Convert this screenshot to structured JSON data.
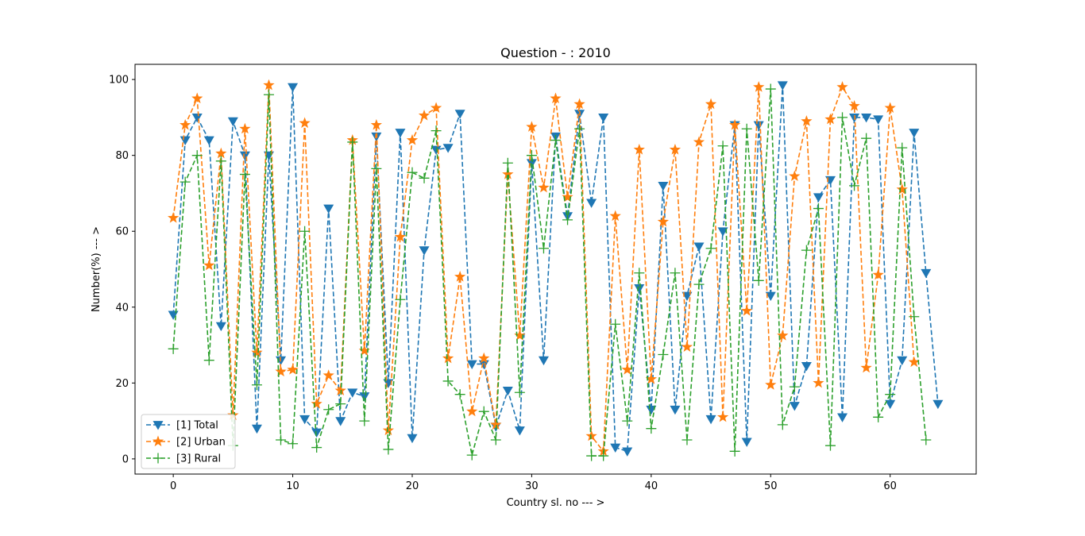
{
  "chart_data": {
    "type": "line",
    "title": "Question - : 2010",
    "xlabel": "Country sl. no --- >",
    "ylabel": "Number(%) --- >",
    "xlim": [
      -3.2,
      67.2
    ],
    "ylim": [
      -4,
      104
    ],
    "xticks": [
      0,
      10,
      20,
      30,
      40,
      50,
      60
    ],
    "yticks": [
      0,
      20,
      40,
      60,
      80,
      100
    ],
    "grid": false,
    "legend_position": "lower-left",
    "series": [
      {
        "name": "[1] Total",
        "color": "#1f77b4",
        "marker": "triangle-down",
        "line_style": "dashed",
        "x": [
          0,
          1,
          2,
          3,
          4,
          5,
          6,
          7,
          8,
          9,
          10,
          11,
          12,
          13,
          14,
          15,
          16,
          17,
          18,
          19,
          20,
          21,
          22,
          23,
          24,
          25,
          26,
          27,
          28,
          29,
          30,
          31,
          32,
          33,
          34,
          35,
          36,
          37,
          38,
          39,
          40,
          41,
          42,
          43,
          44,
          45,
          46,
          47,
          48,
          49,
          50,
          51,
          52,
          53,
          54,
          55,
          56,
          57,
          58,
          59,
          60,
          61,
          62,
          63,
          64
        ],
        "values": [
          38,
          84,
          90,
          84,
          35,
          89,
          80,
          8,
          80,
          26,
          98,
          10.5,
          7,
          66,
          10,
          17.5,
          16.5,
          85,
          20,
          86,
          5.5,
          55,
          81.5,
          82,
          91,
          25,
          25,
          8.5,
          18,
          7.5,
          78,
          26,
          85,
          64,
          91,
          67.5,
          90,
          3,
          2,
          45,
          13,
          72,
          13,
          43,
          56,
          10.5,
          60,
          88,
          4.5,
          88,
          43,
          98.5,
          14,
          24.5,
          69,
          73.5,
          11,
          90,
          90,
          89.5,
          14.5,
          26,
          86,
          49,
          14.5
        ]
      },
      {
        "name": "[2] Urban",
        "color": "#ff7f0e",
        "marker": "star",
        "line_style": "dashed",
        "x": [
          0,
          1,
          2,
          3,
          4,
          5,
          6,
          7,
          8,
          9,
          10,
          11,
          12,
          13,
          14,
          15,
          16,
          17,
          18,
          19,
          20,
          21,
          22,
          23,
          24,
          25,
          26,
          27,
          28,
          29,
          30,
          31,
          32,
          33,
          34,
          35,
          36,
          37,
          38,
          39,
          40,
          41,
          42,
          43,
          44,
          45,
          46,
          47,
          48,
          49,
          50,
          51,
          52,
          53,
          54,
          55,
          56,
          57,
          58,
          59,
          60,
          61,
          62
        ],
        "values": [
          63.5,
          88,
          95,
          51,
          80.5,
          11.5,
          87,
          28,
          98.5,
          23,
          23.5,
          88.5,
          14.5,
          22,
          18,
          84,
          28.5,
          88,
          7.5,
          58.5,
          84,
          90.5,
          92.5,
          26.5,
          48,
          12.5,
          26.5,
          9,
          75,
          32.5,
          87.5,
          71.5,
          95,
          69,
          93.5,
          6,
          2,
          64,
          23.5,
          81.5,
          21,
          62.5,
          81.5,
          29.5,
          83.5,
          93.5,
          11,
          88,
          39,
          98,
          19.5,
          32.5,
          74.5,
          89,
          20,
          89.5,
          98,
          93,
          24,
          48.5,
          92.5,
          71,
          25.5
        ]
      },
      {
        "name": "[3] Rural",
        "color": "#2ca02c",
        "marker": "plus",
        "line_style": "dashed",
        "x": [
          0,
          1,
          2,
          3,
          4,
          5,
          6,
          7,
          8,
          9,
          10,
          11,
          12,
          13,
          14,
          15,
          16,
          17,
          18,
          19,
          20,
          21,
          22,
          23,
          24,
          25,
          26,
          27,
          28,
          29,
          30,
          31,
          32,
          33,
          34,
          35,
          36,
          37,
          38,
          39,
          40,
          41,
          42,
          43,
          44,
          45,
          46,
          47,
          48,
          49,
          50,
          51,
          52,
          53,
          54,
          55,
          56,
          57,
          58,
          59,
          60,
          61,
          62,
          63
        ],
        "values": [
          29,
          73,
          80,
          26,
          78.5,
          3.5,
          75,
          19.5,
          96,
          5,
          4,
          60,
          3,
          13,
          14.5,
          83.5,
          10,
          76.5,
          2.5,
          42,
          75.5,
          74,
          86.5,
          20.5,
          17,
          1,
          12.5,
          5,
          78,
          17.5,
          80,
          55.5,
          84,
          63,
          87,
          0.8,
          0.8,
          35.5,
          10,
          49,
          8,
          27.5,
          49,
          5,
          46,
          55.5,
          82.5,
          2,
          87,
          47,
          97.5,
          9,
          19,
          55,
          66,
          3.5,
          90,
          72,
          84.5,
          11,
          17,
          82,
          37.5,
          5
        ]
      }
    ]
  }
}
